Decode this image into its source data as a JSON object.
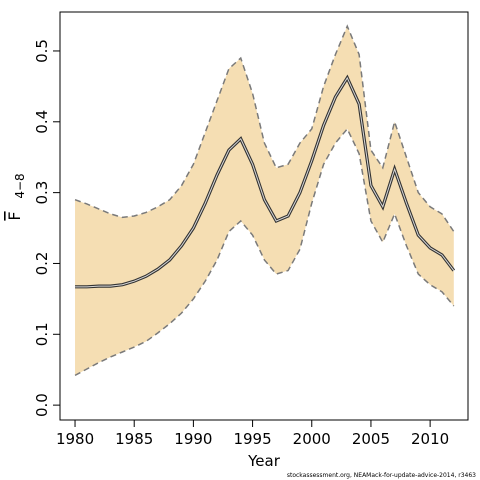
{
  "chart_data": {
    "type": "line",
    "x_label": "Year",
    "y_label": {
      "symbol": "F",
      "subscript": "4−8"
    },
    "footnote": "stockassessment.org, NEAMack-for-update-advice-2014, r3463",
    "x": [
      1980,
      1981,
      1982,
      1983,
      1984,
      1985,
      1986,
      1987,
      1988,
      1989,
      1990,
      1991,
      1992,
      1993,
      1994,
      1995,
      1996,
      1997,
      1998,
      1999,
      2000,
      2001,
      2002,
      2003,
      2004,
      2005,
      2006,
      2007,
      2008,
      2009,
      2010,
      2011,
      2012
    ],
    "values": [
      0.167,
      0.167,
      0.168,
      0.168,
      0.17,
      0.175,
      0.182,
      0.192,
      0.205,
      0.225,
      0.25,
      0.285,
      0.325,
      0.36,
      0.376,
      0.34,
      0.29,
      0.26,
      0.267,
      0.3,
      0.345,
      0.395,
      0.435,
      0.462,
      0.425,
      0.31,
      0.28,
      0.333,
      0.285,
      0.24,
      0.222,
      0.212,
      0.19
    ],
    "upper": [
      0.29,
      0.284,
      0.277,
      0.27,
      0.265,
      0.267,
      0.272,
      0.28,
      0.29,
      0.31,
      0.34,
      0.385,
      0.43,
      0.475,
      0.49,
      0.44,
      0.37,
      0.335,
      0.34,
      0.37,
      0.39,
      0.45,
      0.495,
      0.535,
      0.495,
      0.36,
      0.335,
      0.4,
      0.35,
      0.3,
      0.28,
      0.27,
      0.245
    ],
    "lower": [
      0.042,
      0.051,
      0.06,
      0.068,
      0.075,
      0.082,
      0.09,
      0.102,
      0.115,
      0.13,
      0.15,
      0.175,
      0.205,
      0.245,
      0.26,
      0.24,
      0.205,
      0.185,
      0.19,
      0.22,
      0.285,
      0.34,
      0.37,
      0.39,
      0.355,
      0.26,
      0.23,
      0.27,
      0.225,
      0.185,
      0.17,
      0.16,
      0.14
    ],
    "color": "#333333",
    "band_color": "#f5deb3",
    "bound_color": "#7a7a7a",
    "xlim": [
      1978.73,
      2013.2
    ],
    "ylim": [
      -0.021,
      0.555
    ],
    "xticks": [
      1980,
      1985,
      1990,
      1995,
      2000,
      2005,
      2010
    ],
    "yticks": [
      {
        "value": 0,
        "label": "0.0"
      },
      0.1,
      0.2,
      0.3,
      0.4,
      0.5
    ]
  }
}
